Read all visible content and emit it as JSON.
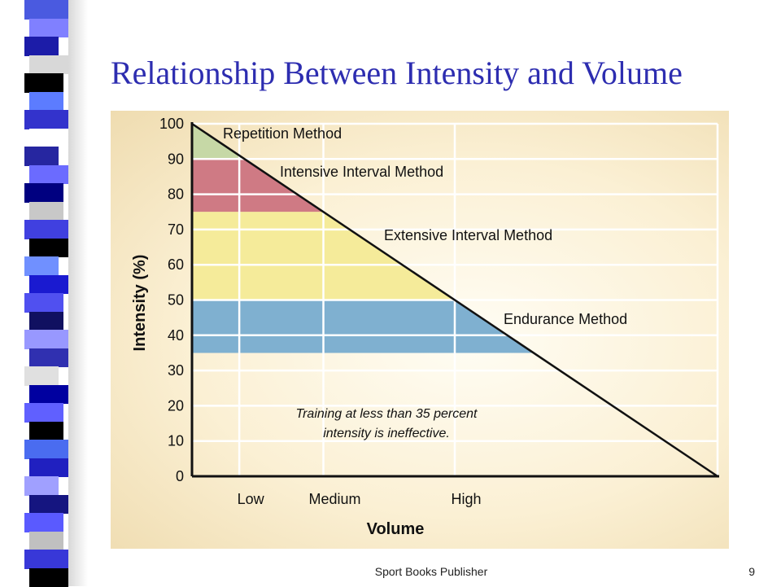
{
  "slide": {
    "title": "Relationship Between Intensity and Volume",
    "footer": "Sport Books Publisher",
    "page_number": "9"
  },
  "theme": {
    "strip_colors": [
      "#4a5ae0",
      "#8080ff",
      "#1c1ca8",
      "#d8d8d8",
      "#000000",
      "#5c7cff",
      "#3333cc",
      "#ffffff",
      "#2626a0",
      "#6b6bff",
      "#000080",
      "#c8c8c8",
      "#4040e0",
      "#000000",
      "#7090ff",
      "#1a1ad0",
      "#5050f0",
      "#101060",
      "#9898ff",
      "#3030b0",
      "#e0e0e0",
      "#0000a0",
      "#6060ff",
      "#000000",
      "#4a6cf0",
      "#2020c0",
      "#a0a0ff",
      "#151580",
      "#5a5aff",
      "#c0c0c0",
      "#3838d8",
      "#000000"
    ],
    "panel_colors": {
      "repetition": "#c6d8a6",
      "intensive": "#cf7a84",
      "extensive": "#f5eb9a",
      "endurance": "#7fb0d0",
      "grid": "#ffffff",
      "line": "#111111"
    }
  },
  "chart_data": {
    "type": "area",
    "xlabel": "Volume",
    "ylabel": "Intensity (%)",
    "ylim": [
      0,
      100
    ],
    "yticks": [
      "0",
      "10",
      "20",
      "30",
      "40",
      "50",
      "60",
      "70",
      "80",
      "90",
      "100"
    ],
    "xticks": [
      "Low",
      "Medium",
      "High"
    ],
    "line": {
      "from": [
        0,
        100
      ],
      "to": [
        100,
        0
      ]
    },
    "grid": true,
    "zones": [
      {
        "name": "Repetition Method",
        "ymin": 90,
        "ymax": 100,
        "color": "#c6d8a6"
      },
      {
        "name": "Intensive Interval Method",
        "ymin": 75,
        "ymax": 90,
        "color": "#cf7a84"
      },
      {
        "name": "Extensive Interval Method",
        "ymin": 50,
        "ymax": 75,
        "color": "#f5eb9a"
      },
      {
        "name": "Endurance Method",
        "ymin": 35,
        "ymax": 50,
        "color": "#7fb0d0"
      }
    ],
    "annotation": [
      "Training at less than 35 percent",
      "intensity is ineffective."
    ]
  }
}
